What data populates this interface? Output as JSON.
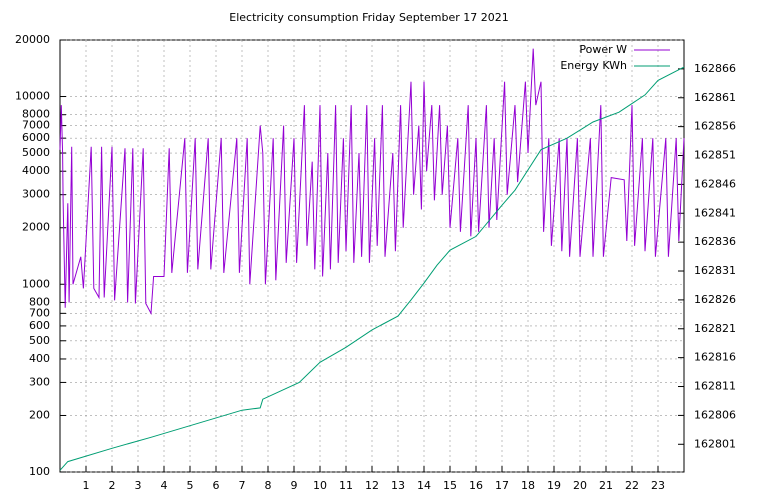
{
  "chart_data": {
    "type": "line",
    "title": "Electricity consumption Friday September 17 2021",
    "xlim": [
      0,
      24
    ],
    "xticks": [
      1,
      2,
      3,
      4,
      5,
      6,
      7,
      8,
      9,
      10,
      11,
      12,
      13,
      14,
      15,
      16,
      17,
      18,
      19,
      20,
      21,
      22,
      23
    ],
    "ylim": [
      100,
      20000
    ],
    "log_y": true,
    "yticks": [
      100,
      200,
      300,
      400,
      500,
      600,
      700,
      800,
      1000,
      2000,
      3000,
      4000,
      5000,
      6000,
      7000,
      8000,
      10000,
      20000
    ],
    "y2lim": [
      162796.2,
      162871
    ],
    "y2ticks": [
      162801,
      162806,
      162811,
      162816,
      162821,
      162826,
      162831,
      162836,
      162841,
      162846,
      162851,
      162856,
      162861,
      162866
    ],
    "grid": true,
    "legend": "top-right",
    "series": [
      {
        "name": "Power W",
        "color": "#9400d3",
        "x": [
          0,
          0.05,
          0.1,
          0.12,
          0.2,
          0.3,
          0.35,
          0.45,
          0.5,
          0.8,
          0.9,
          1.2,
          1.3,
          1.5,
          1.6,
          1.7,
          2,
          2.1,
          2.5,
          2.6,
          2.8,
          2.9,
          3.2,
          3.3,
          3.5,
          3.6,
          4,
          4.2,
          4.3,
          4.8,
          4.9,
          5.2,
          5.3,
          5.7,
          5.8,
          6.2,
          6.3,
          6.8,
          6.9,
          7.2,
          7.3,
          7.7,
          7.8,
          7.9,
          8.2,
          8.3,
          8.6,
          8.7,
          9,
          9.1,
          9.4,
          9.5,
          9.7,
          9.8,
          10,
          10.1,
          10.3,
          10.4,
          10.6,
          10.7,
          10.9,
          11,
          11.2,
          11.3,
          11.5,
          11.6,
          11.8,
          11.9,
          12.1,
          12.2,
          12.4,
          12.5,
          12.8,
          12.9,
          13.1,
          13.2,
          13.5,
          13.6,
          13.8,
          13.9,
          14,
          14.1,
          14.3,
          14.4,
          14.6,
          14.7,
          14.9,
          15,
          15.3,
          15.4,
          15.7,
          15.8,
          16,
          16.1,
          16.4,
          16.5,
          16.7,
          16.8,
          17.1,
          17.2,
          17.5,
          17.6,
          17.9,
          18,
          18.2,
          18.3,
          18.5,
          18.6,
          18.8,
          18.9,
          19.2,
          19.3,
          19.5,
          19.6,
          19.9,
          20,
          20.4,
          20.5,
          20.8,
          20.9,
          21.2,
          21.7,
          21.8,
          22,
          22.1,
          22.4,
          22.5,
          22.8,
          22.9,
          23.3,
          23.4,
          23.7,
          23.8,
          24
        ],
        "values": [
          5200,
          9000,
          5000,
          2800,
          750,
          2700,
          800,
          5400,
          1000,
          1400,
          950,
          5400,
          950,
          850,
          5400,
          850,
          5400,
          820,
          5300,
          800,
          5300,
          790,
          5300,
          790,
          700,
          1100,
          1100,
          5300,
          1150,
          6000,
          1150,
          6000,
          1200,
          6000,
          1200,
          6000,
          1150,
          6000,
          1150,
          6000,
          1000,
          7000,
          5000,
          1000,
          6000,
          1050,
          7000,
          1300,
          6000,
          1300,
          9000,
          1600,
          4500,
          1200,
          9000,
          1100,
          5000,
          1200,
          9000,
          1300,
          6000,
          1500,
          9000,
          1300,
          5000,
          1400,
          9000,
          1300,
          6000,
          1600,
          9000,
          1400,
          5000,
          1500,
          9000,
          2000,
          12000,
          3000,
          7000,
          2500,
          12000,
          4000,
          9000,
          2800,
          9000,
          3000,
          7000,
          2000,
          6000,
          1900,
          9000,
          1800,
          6000,
          1900,
          9000,
          2000,
          6000,
          2200,
          12000,
          3000,
          9000,
          3500,
          12000,
          5000,
          18000,
          9000,
          12000,
          1900,
          6000,
          1600,
          6000,
          1500,
          6000,
          1400,
          6000,
          1400,
          6000,
          1400,
          9000,
          1400,
          3700,
          3600,
          1700,
          9000,
          1600,
          6000,
          1500,
          6000,
          1400,
          6000,
          1400,
          6000,
          1700,
          6000
        ]
      },
      {
        "name": "Energy KWh",
        "color": "#009e73",
        "axis": "y2",
        "x": [
          0,
          0.3,
          2,
          3.5,
          7,
          7.7,
          7.8,
          9.2,
          10,
          11,
          12,
          13,
          13.5,
          14,
          14.5,
          15,
          16,
          17,
          17.5,
          18,
          18.5,
          19.5,
          20.5,
          21.5,
          22.5,
          23,
          24
        ],
        "values": [
          162796.5,
          162798,
          162800.3,
          162802.2,
          162806.9,
          162807.3,
          162808.8,
          162811.7,
          162815.2,
          162817.8,
          162820.8,
          162823.2,
          162826,
          162828.9,
          162832,
          162834.6,
          162837,
          162842.4,
          162845,
          162848.5,
          162852,
          162854,
          162856.8,
          162858.5,
          162861.5,
          162864,
          162866.3
        ]
      }
    ]
  }
}
